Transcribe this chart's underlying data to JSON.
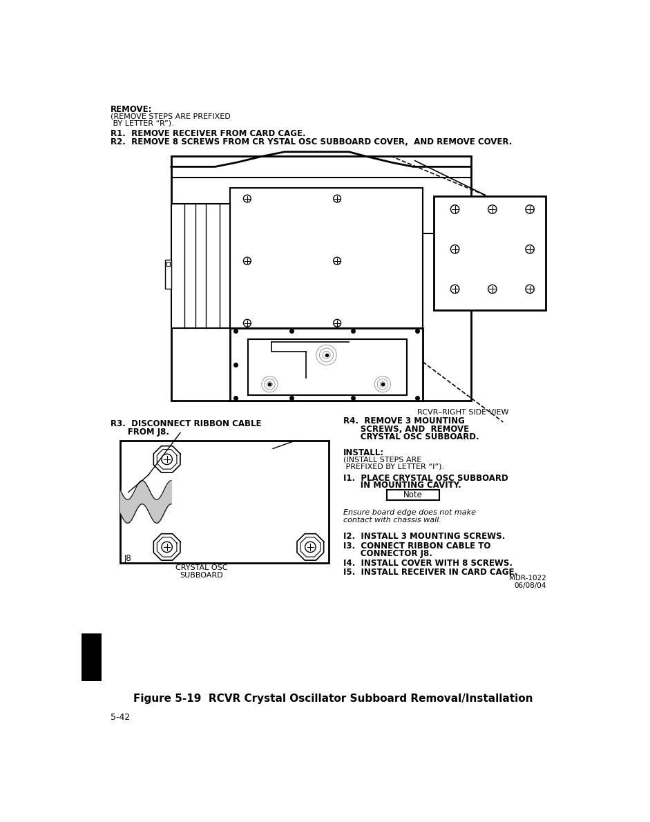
{
  "title": "Figure 5-19  RCVR Crystal Oscillator Subboard Removal/Installation",
  "page_num": "5-42",
  "doc_ref": "MDR-1022\n06/08/04",
  "bg_color": "#ffffff",
  "text_color": "#000000",
  "remove_header": "REMOVE:",
  "remove_sub": "(REMOVE STEPS ARE PREFIXED\n BY LETTER “R”).",
  "r1": "R1.  REMOVE RECEIVER FROM CARD CAGE.",
  "r2": "R2.  REMOVE 8 SCREWS FROM CR YSTAL OSC SUBBOARD COVER,  AND REMOVE COVER.",
  "r3_line1": "R3.  DISCONNECT RIBBON CABLE",
  "r3_line2": "      FROM J8.",
  "r4_line1": "R4.  REMOVE 3 MOUNTING",
  "r4_line2": "      SCREWS, AND  REMOVE",
  "r4_line3": "      CRYSTAL OSC SUBBOARD.",
  "install_header": "INSTALL:",
  "install_sub": "(INSTALL STEPS ARE\n PREFIXED BY LETTER “I”).",
  "i1_line1": "I1.  PLACE CRYSTAL OSC SUBBOARD",
  "i1_line2": "      IN MOUNTING CAVITY.",
  "note_text": "Note",
  "note_body": "Ensure board edge does not make\ncontact with chassis wall.",
  "i2": "I2.  INSTALL 3 MOUNTING SCREWS.",
  "i3_line1": "I3.  CONNECT RIBBON CABLE TO",
  "i3_line2": "      CONNECTOR J8.",
  "i4": "I4.  INSTALL COVER WITH 8 SCREWS.",
  "i5": "I5.  INSTALL RECEIVER IN CARD CAGE.",
  "label_j8": "J8",
  "label_crystal_line1": "CRYSTAL OSC",
  "label_crystal_line2": "SUBBOARD",
  "label_rcvr": "RCVR–RIGHT SIDE VIEW"
}
